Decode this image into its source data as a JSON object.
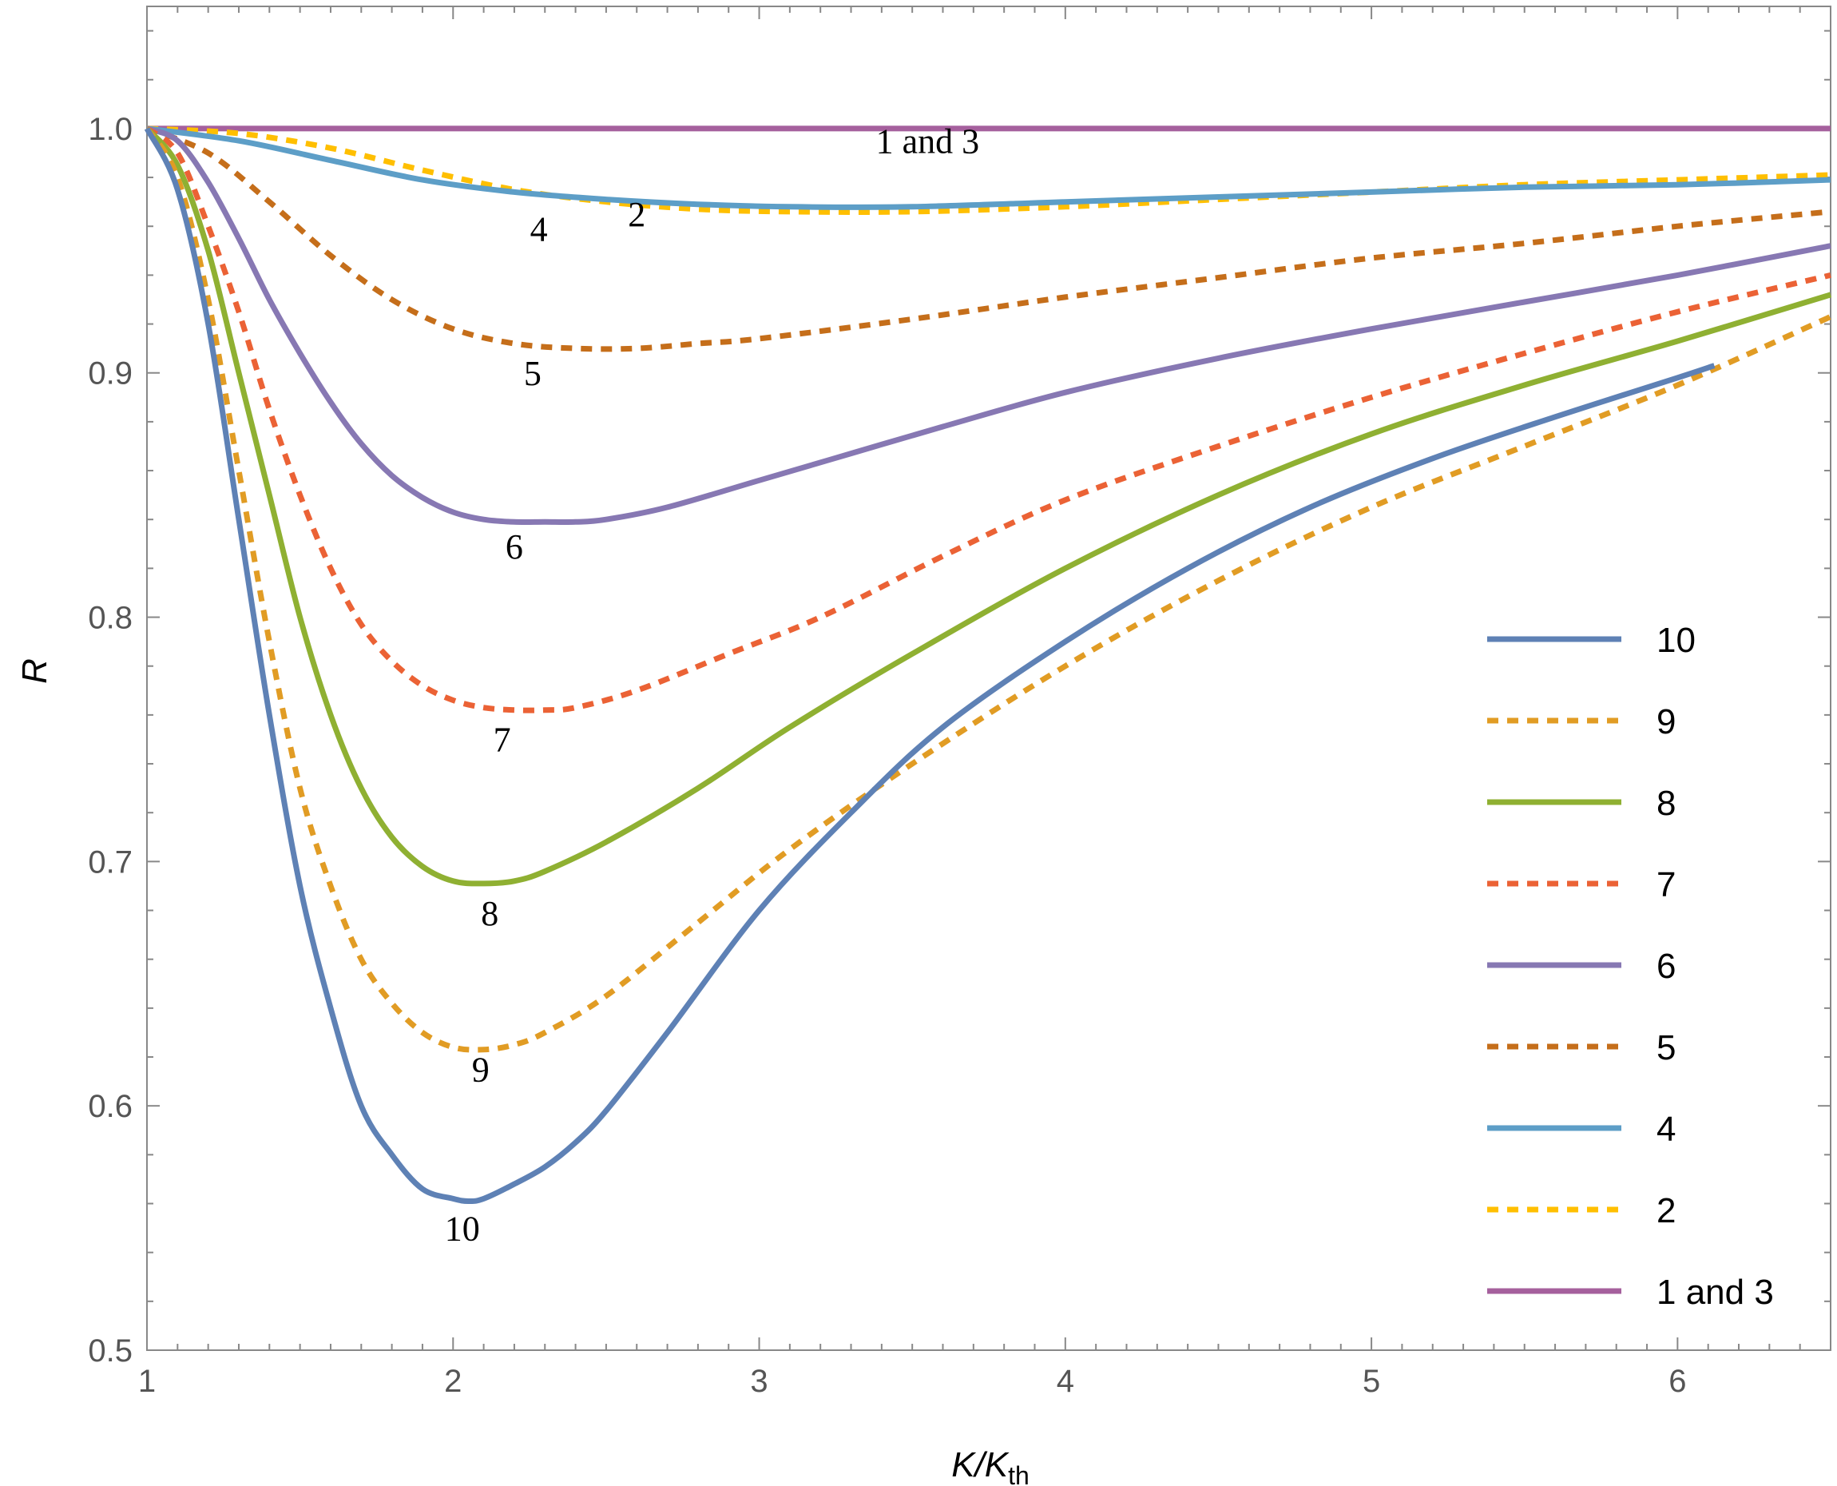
{
  "chart_data": {
    "type": "line",
    "title": "",
    "xlabel": "K/K",
    "xlabel_subscript": "th",
    "ylabel": "R",
    "xlim": [
      1,
      6.5
    ],
    "ylim": [
      0.5,
      1.05
    ],
    "xticks": [
      1,
      2,
      3,
      4,
      5,
      6
    ],
    "xtick_labels": [
      "1",
      "2",
      "3",
      "4",
      "5",
      "6"
    ],
    "yticks": [
      0.5,
      0.6,
      0.7,
      0.8,
      0.9,
      1.0
    ],
    "ytick_labels": [
      "0.5",
      "0.6",
      "0.7",
      "0.8",
      "0.9",
      "1.0"
    ],
    "grid": false,
    "legend_position": "bottom-right",
    "series": [
      {
        "name": "10",
        "color": "#5E81B5",
        "dash": "solid",
        "x": [
          1.0,
          1.1,
          1.2,
          1.3,
          1.4,
          1.5,
          1.6,
          1.7,
          1.8,
          1.9,
          2.0,
          2.05,
          2.1,
          2.2,
          2.3,
          2.4,
          2.5,
          2.7,
          3.0,
          3.3,
          3.6,
          4.0,
          4.4,
          4.8,
          5.2,
          5.6,
          6.0,
          6.12
        ],
        "y": [
          1.0,
          0.975,
          0.92,
          0.84,
          0.76,
          0.69,
          0.64,
          0.6,
          0.58,
          0.566,
          0.562,
          0.561,
          0.562,
          0.568,
          0.575,
          0.585,
          0.598,
          0.63,
          0.68,
          0.72,
          0.755,
          0.79,
          0.82,
          0.845,
          0.865,
          0.882,
          0.898,
          0.903
        ]
      },
      {
        "name": "9",
        "color": "#E19C24",
        "dash": "dashed",
        "x": [
          1.0,
          1.1,
          1.2,
          1.3,
          1.4,
          1.5,
          1.6,
          1.7,
          1.8,
          1.9,
          2.0,
          2.1,
          2.2,
          2.3,
          2.5,
          2.8,
          3.1,
          3.5,
          4.0,
          4.5,
          5.0,
          5.5,
          6.0,
          6.5
        ],
        "y": [
          1.0,
          0.98,
          0.93,
          0.86,
          0.79,
          0.73,
          0.69,
          0.66,
          0.642,
          0.63,
          0.624,
          0.623,
          0.625,
          0.63,
          0.645,
          0.675,
          0.705,
          0.74,
          0.78,
          0.815,
          0.845,
          0.87,
          0.895,
          0.923
        ]
      },
      {
        "name": "8",
        "color": "#8FB032",
        "dash": "solid",
        "x": [
          1.0,
          1.1,
          1.2,
          1.3,
          1.4,
          1.5,
          1.6,
          1.7,
          1.8,
          1.9,
          2.0,
          2.1,
          2.2,
          2.3,
          2.5,
          2.8,
          3.1,
          3.5,
          4.0,
          4.5,
          5.0,
          5.5,
          6.0,
          6.5
        ],
        "y": [
          1.0,
          0.985,
          0.95,
          0.9,
          0.85,
          0.8,
          0.76,
          0.73,
          0.71,
          0.698,
          0.692,
          0.691,
          0.692,
          0.696,
          0.708,
          0.73,
          0.755,
          0.785,
          0.82,
          0.85,
          0.875,
          0.895,
          0.913,
          0.932
        ]
      },
      {
        "name": "7",
        "color": "#EB6235",
        "dash": "dashed",
        "x": [
          1.0,
          1.1,
          1.2,
          1.3,
          1.4,
          1.5,
          1.6,
          1.7,
          1.8,
          1.9,
          2.0,
          2.1,
          2.2,
          2.3,
          2.4,
          2.6,
          2.9,
          3.2,
          3.6,
          4.0,
          4.5,
          5.0,
          5.5,
          6.0,
          6.5
        ],
        "y": [
          1.0,
          0.99,
          0.96,
          0.925,
          0.885,
          0.85,
          0.82,
          0.797,
          0.782,
          0.772,
          0.766,
          0.763,
          0.762,
          0.762,
          0.763,
          0.77,
          0.785,
          0.8,
          0.825,
          0.848,
          0.87,
          0.89,
          0.908,
          0.925,
          0.94
        ]
      },
      {
        "name": "6",
        "color": "#8778B3",
        "dash": "solid",
        "x": [
          1.0,
          1.1,
          1.2,
          1.3,
          1.4,
          1.5,
          1.6,
          1.7,
          1.8,
          1.9,
          2.0,
          2.1,
          2.2,
          2.3,
          2.4,
          2.5,
          2.7,
          3.0,
          3.3,
          3.6,
          4.0,
          4.5,
          5.0,
          5.5,
          6.0,
          6.5
        ],
        "y": [
          1.0,
          0.995,
          0.978,
          0.955,
          0.93,
          0.908,
          0.888,
          0.871,
          0.858,
          0.849,
          0.843,
          0.84,
          0.839,
          0.839,
          0.839,
          0.84,
          0.845,
          0.856,
          0.867,
          0.878,
          0.892,
          0.906,
          0.918,
          0.929,
          0.94,
          0.952
        ]
      },
      {
        "name": "5",
        "color": "#C56E1A",
        "dash": "dashed",
        "x": [
          1.0,
          1.2,
          1.4,
          1.6,
          1.8,
          2.0,
          2.2,
          2.4,
          2.6,
          2.8,
          3.0,
          3.5,
          4.0,
          4.5,
          5.0,
          5.5,
          6.0,
          6.5
        ],
        "y": [
          1.0,
          0.99,
          0.97,
          0.948,
          0.93,
          0.918,
          0.912,
          0.91,
          0.91,
          0.912,
          0.914,
          0.922,
          0.931,
          0.939,
          0.947,
          0.953,
          0.96,
          0.966
        ]
      },
      {
        "name": "4",
        "color": "#5D9EC7",
        "dash": "solid",
        "x": [
          1.0,
          1.3,
          1.6,
          1.9,
          2.2,
          2.5,
          2.8,
          3.1,
          3.5,
          4.0,
          4.5,
          5.0,
          5.5,
          6.0,
          6.5
        ],
        "y": [
          1.0,
          0.995,
          0.987,
          0.979,
          0.974,
          0.971,
          0.969,
          0.968,
          0.968,
          0.97,
          0.972,
          0.974,
          0.976,
          0.977,
          0.979
        ]
      },
      {
        "name": "2",
        "color": "#FFBF00",
        "dash": "dashed",
        "x": [
          1.0,
          1.3,
          1.6,
          1.9,
          2.2,
          2.5,
          2.8,
          3.1,
          3.5,
          4.0,
          4.5,
          5.0,
          5.5,
          6.0,
          6.5
        ],
        "y": [
          1.0,
          0.998,
          0.992,
          0.983,
          0.975,
          0.97,
          0.967,
          0.966,
          0.966,
          0.968,
          0.971,
          0.974,
          0.977,
          0.979,
          0.981
        ]
      },
      {
        "name": "1 and 3",
        "color": "#A5609D",
        "dash": "solid",
        "x": [
          1.0,
          6.5
        ],
        "y": [
          1.0,
          1.0
        ]
      }
    ],
    "annotations": [
      {
        "text": "1 and 3",
        "x": 3.55,
        "y": 0.99
      },
      {
        "text": "2",
        "x": 2.6,
        "y": 0.96
      },
      {
        "text": "4",
        "x": 2.28,
        "y": 0.954
      },
      {
        "text": "5",
        "x": 2.26,
        "y": 0.895
      },
      {
        "text": "6",
        "x": 2.2,
        "y": 0.824
      },
      {
        "text": "7",
        "x": 2.16,
        "y": 0.745
      },
      {
        "text": "8",
        "x": 2.12,
        "y": 0.674
      },
      {
        "text": "9",
        "x": 2.09,
        "y": 0.61
      },
      {
        "text": "10",
        "x": 2.03,
        "y": 0.545
      }
    ]
  }
}
